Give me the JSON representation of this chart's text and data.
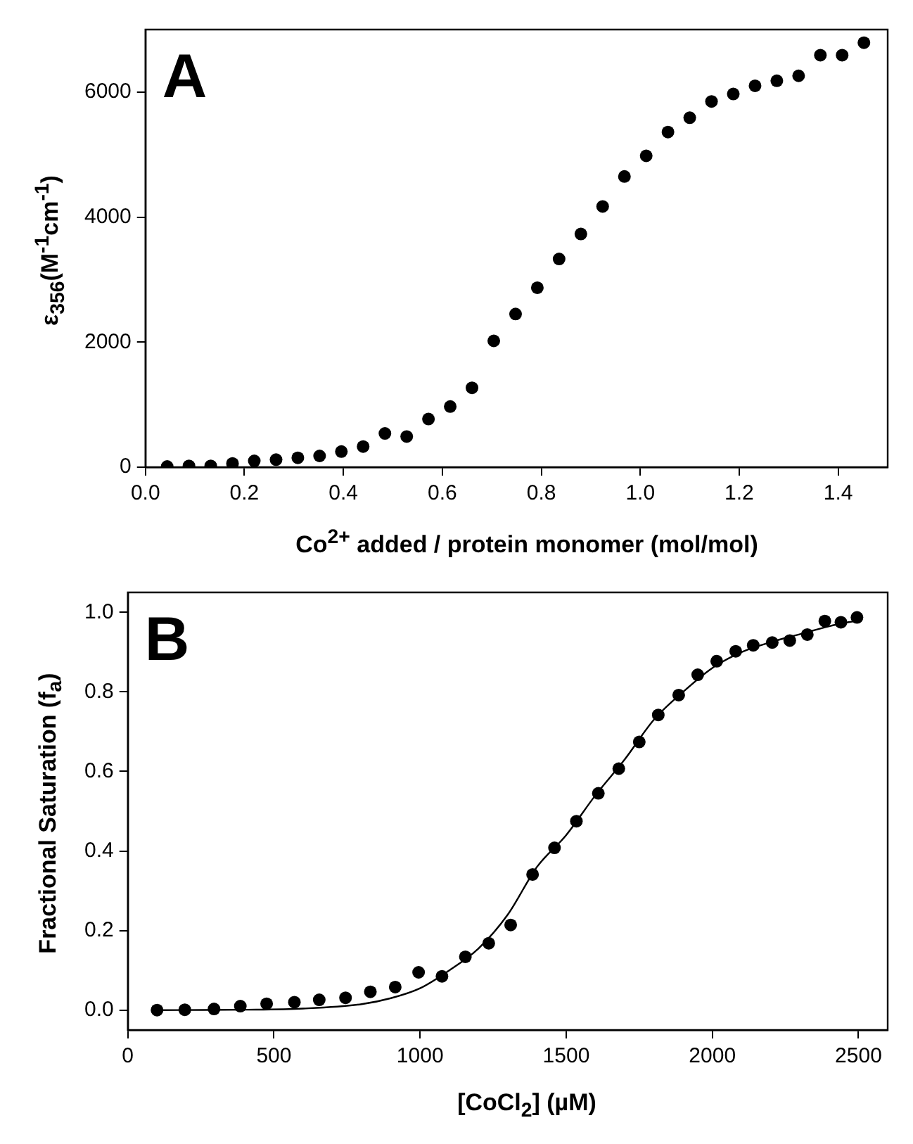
{
  "chart_data": [
    {
      "type": "scatter",
      "xlabel": "Co$^{2+}$ added / protein monomer (mol/mol)",
      "ylabel": "ε$_{356}$(M$^{-1}$cm$^{-1}$)",
      "annotations": [
        "A"
      ],
      "marker": "circle",
      "xlim": [
        0,
        1.5
      ],
      "ylim": [
        0,
        7000
      ],
      "xticks": [
        {
          "value": 0,
          "label": "0.0"
        },
        {
          "value": 0.2,
          "label": "0.2"
        },
        {
          "value": 0.4,
          "label": "0.4"
        },
        {
          "value": 0.6,
          "label": "0.6"
        },
        {
          "value": 0.8,
          "label": "0.8"
        },
        {
          "value": 1,
          "label": "1.0"
        },
        {
          "value": 1.2,
          "label": "1.2"
        },
        {
          "value": 1.4,
          "label": "1.4"
        }
      ],
      "yticks": [
        0,
        2000,
        4000,
        6000
      ],
      "series": [
        {
          "color": "#000000",
          "x": [
            0.044,
            0.088,
            0.132,
            0.176,
            0.22,
            0.264,
            0.308,
            0.352,
            0.396,
            0.44,
            0.484,
            0.528,
            0.572,
            0.616,
            0.66,
            0.704,
            0.748,
            0.792,
            0.836,
            0.88,
            0.924,
            0.968,
            1.012,
            1.056,
            1.1,
            1.144,
            1.188,
            1.232,
            1.276,
            1.32,
            1.364,
            1.408,
            1.452
          ],
          "values": [
            10,
            20,
            20,
            60,
            100,
            120,
            150,
            180,
            250,
            330,
            540,
            490,
            770,
            970,
            1270,
            2020,
            2450,
            2870,
            3330,
            3730,
            4170,
            4650,
            4980,
            5360,
            5590,
            5850,
            5970,
            6100,
            6180,
            6260,
            6590,
            6590,
            6790
          ]
        }
      ]
    },
    {
      "type": "scatter",
      "xlabel": "[CoCl$_{2}$] (µM)",
      "ylabel": "Fractional Saturation (f$_{a}$)",
      "annotations": [
        "B"
      ],
      "marker": "circle",
      "xlim": [
        0,
        2600
      ],
      "ylim": [
        -0.05,
        1.05
      ],
      "xticks": [
        0,
        500,
        1000,
        1500,
        2000,
        2500
      ],
      "yticks": [
        {
          "value": 0,
          "label": "0.0"
        },
        {
          "value": 0.2,
          "label": "0.2"
        },
        {
          "value": 0.4,
          "label": "0.4"
        },
        {
          "value": 0.6,
          "label": "0.6"
        },
        {
          "value": 0.8,
          "label": "0.8"
        },
        {
          "value": 1,
          "label": "1.0"
        }
      ],
      "series": [
        {
          "color": "#000000",
          "x": [
            100,
            195,
            295,
            385,
            475,
            570,
            655,
            745,
            830,
            915,
            995,
            1075,
            1155,
            1235,
            1310,
            1385,
            1460,
            1535,
            1610,
            1680,
            1750,
            1815,
            1885,
            1950,
            2015,
            2080,
            2140,
            2205,
            2265,
            2325,
            2385,
            2440,
            2495
          ],
          "values": [
            0,
            0.001,
            0.003,
            0.01,
            0.016,
            0.02,
            0.026,
            0.031,
            0.046,
            0.058,
            0.095,
            0.085,
            0.134,
            0.168,
            0.214,
            0.341,
            0.408,
            0.475,
            0.545,
            0.607,
            0.674,
            0.742,
            0.792,
            0.843,
            0.877,
            0.902,
            0.917,
            0.924,
            0.929,
            0.944,
            0.978,
            0.975,
            0.987
          ]
        },
        {
          "type": "line",
          "marker": "none",
          "color": "#000000",
          "x": [
            100,
            400,
            600,
            800,
            900,
            1000,
            1100,
            1200,
            1300,
            1400,
            1500,
            1600,
            1700,
            1800,
            1900,
            2000,
            2100,
            2200,
            2300,
            2400,
            2500
          ],
          "values": [
            0,
            0.001,
            0.004,
            0.015,
            0.03,
            0.055,
            0.1,
            0.155,
            0.24,
            0.36,
            0.44,
            0.54,
            0.63,
            0.73,
            0.8,
            0.86,
            0.9,
            0.925,
            0.945,
            0.965,
            0.98
          ]
        }
      ]
    }
  ]
}
